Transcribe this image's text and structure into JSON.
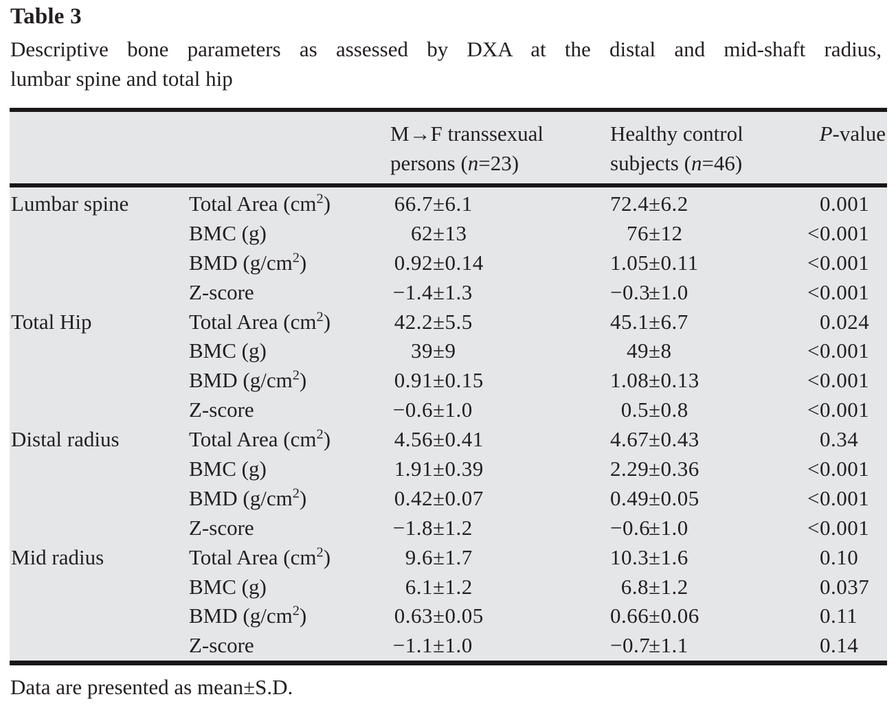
{
  "title": "Table 3",
  "caption": {
    "line1": "Descriptive bone parameters as assessed by DXA at the distal and mid-shaft radius,",
    "line2": "lumbar spine and total hip"
  },
  "table": {
    "columns": {
      "group_mf": {
        "line1": "M→F transsexual",
        "line2": "persons (*n*=23)"
      },
      "group_control": {
        "line1": "Healthy control",
        "line2": "subjects (*n*=46)"
      },
      "p": "*P*-value"
    },
    "sections": [
      {
        "region": "Lumbar spine",
        "rows": [
          {
            "parameter": "Total Area (cm^{2})",
            "mf": "66.7±6.1",
            "control": "72.4±6.2",
            "p": "0.001"
          },
          {
            "parameter": "BMC (g)",
            "mf": "62±13",
            "control": "76±12",
            "p": "<0.001"
          },
          {
            "parameter": "BMD (g/cm^{2})",
            "mf": "0.92±0.14",
            "control": "1.05±0.11",
            "p": "<0.001"
          },
          {
            "parameter": "Z-score",
            "mf": "−1.4±1.3",
            "control": "−0.3±1.0",
            "p": "<0.001"
          }
        ]
      },
      {
        "region": "Total Hip",
        "rows": [
          {
            "parameter": "Total Area (cm^{2})",
            "mf": "42.2±5.5",
            "control": "45.1±6.7",
            "p": "0.024"
          },
          {
            "parameter": "BMC (g)",
            "mf": "39±9",
            "control": "49±8",
            "p": "<0.001"
          },
          {
            "parameter": "BMD (g/cm^{2})",
            "mf": "0.91±0.15",
            "control": "1.08±0.13",
            "p": "<0.001"
          },
          {
            "parameter": "Z-score",
            "mf": "−0.6±1.0",
            "control": "0.5±0.8",
            "p": "<0.001"
          }
        ]
      },
      {
        "region": "Distal radius",
        "rows": [
          {
            "parameter": "Total Area (cm^{2})",
            "mf": "4.56±0.41",
            "control": "4.67±0.43",
            "p": "0.34"
          },
          {
            "parameter": "BMC (g)",
            "mf": "1.91±0.39",
            "control": "2.29±0.36",
            "p": "<0.001"
          },
          {
            "parameter": "BMD (g/cm^{2})",
            "mf": "0.42±0.07",
            "control": "0.49±0.05",
            "p": "<0.001"
          },
          {
            "parameter": "Z-score",
            "mf": "−1.8±1.2",
            "control": "−0.6±1.0",
            "p": "<0.001"
          }
        ]
      },
      {
        "region": "Mid radius",
        "rows": [
          {
            "parameter": "Total Area (cm^{2})",
            "mf": "9.6±1.7",
            "control": "10.3±1.6",
            "p": "0.10"
          },
          {
            "parameter": "BMC (g)",
            "mf": "6.1±1.2",
            "control": "6.8±1.2",
            "p": "0.037"
          },
          {
            "parameter": "BMD (g/cm^{2})",
            "mf": "0.63±0.05",
            "control": "0.66±0.06",
            "p": "0.11"
          },
          {
            "parameter": "Z-score",
            "mf": "−1.1±1.0",
            "control": "−0.7±1.1",
            "p": "0.14"
          }
        ]
      }
    ]
  },
  "footnote": "Data are presented as mean±S.D.",
  "colors": {
    "page_background": "#ffffff",
    "table_background": "#e5e6e8",
    "rule": "#1a1617",
    "text": "#231f20"
  }
}
